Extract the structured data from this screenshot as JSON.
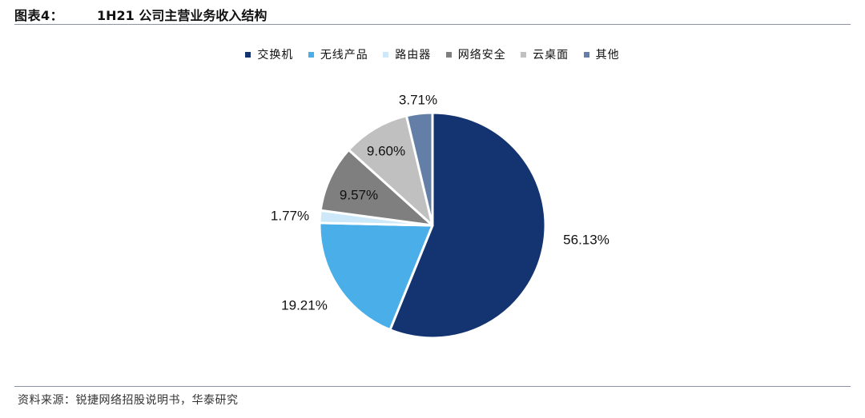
{
  "header": {
    "figure_label": "图表4：",
    "title": "1H21 公司主营业务收入结构"
  },
  "footer": {
    "source": "资料来源：锐捷网络招股说明书，华泰研究"
  },
  "chart_data": {
    "type": "pie",
    "title": "1H21 公司主营业务收入结构",
    "legend_position": "top",
    "slices": [
      {
        "name": "交换机",
        "value": 56.13,
        "label": "56.13%",
        "color": "#133470"
      },
      {
        "name": "无线产品",
        "value": 19.21,
        "label": "19.21%",
        "color": "#4aaee9"
      },
      {
        "name": "路由器",
        "value": 1.77,
        "label": "1.77%",
        "color": "#cde8f8"
      },
      {
        "name": "网络安全",
        "value": 9.57,
        "label": "9.57%",
        "color": "#7f7f7f"
      },
      {
        "name": "云桌面",
        "value": 9.6,
        "label": "9.60%",
        "color": "#c0c0c0"
      },
      {
        "name": "其他",
        "value": 3.71,
        "label": "3.71%",
        "color": "#647fa7"
      }
    ]
  }
}
